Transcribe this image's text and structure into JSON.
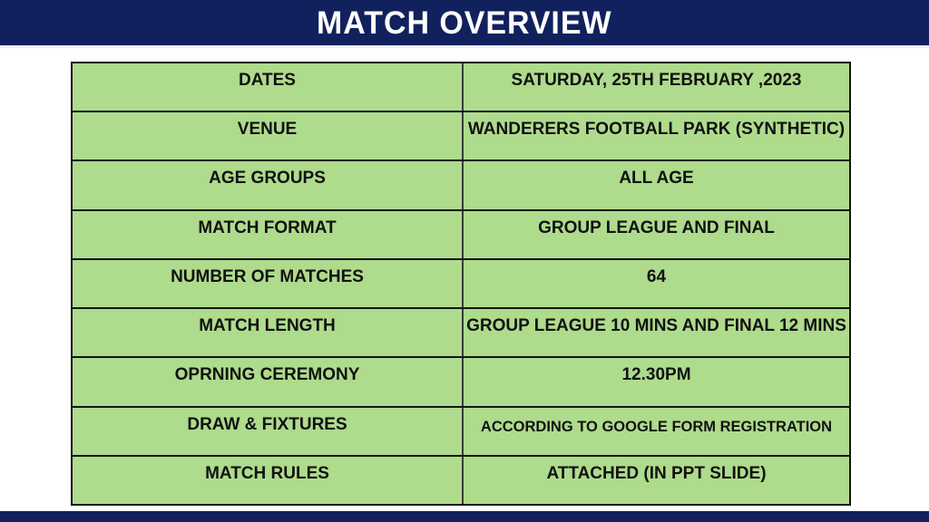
{
  "slide": {
    "title": "MATCH OVERVIEW",
    "colors": {
      "navy": "#11215e",
      "cell_green": "#aedb8c",
      "border": "#141414",
      "column_divider": "#3a3a3a",
      "header_underline": "#edeff5",
      "title_text": "#ffffff",
      "cell_text": "#111111"
    },
    "table": {
      "rows": [
        {
          "label": "DATES",
          "value": "SATURDAY, 25TH FEBRUARY ,2023"
        },
        {
          "label": "VENUE",
          "value": "WANDERERS FOOTBALL PARK (SYNTHETIC)"
        },
        {
          "label": "AGE GROUPS",
          "value": "ALL AGE"
        },
        {
          "label": "MATCH FORMAT",
          "value": "GROUP LEAGUE AND FINAL"
        },
        {
          "label": "NUMBER OF MATCHES",
          "value": "64"
        },
        {
          "label": "MATCH LENGTH",
          "value": "GROUP LEAGUE 10 MINS AND FINAL 12 MINS"
        },
        {
          "label": "OPRNING CEREMONY",
          "value": "12.30PM"
        },
        {
          "label": "DRAW & FIXTURES",
          "value": "ACCORDING TO GOOGLE FORM REGISTRATION"
        },
        {
          "label": "MATCH RULES",
          "value": "ATTACHED (IN PPT SLIDE)"
        }
      ]
    }
  }
}
